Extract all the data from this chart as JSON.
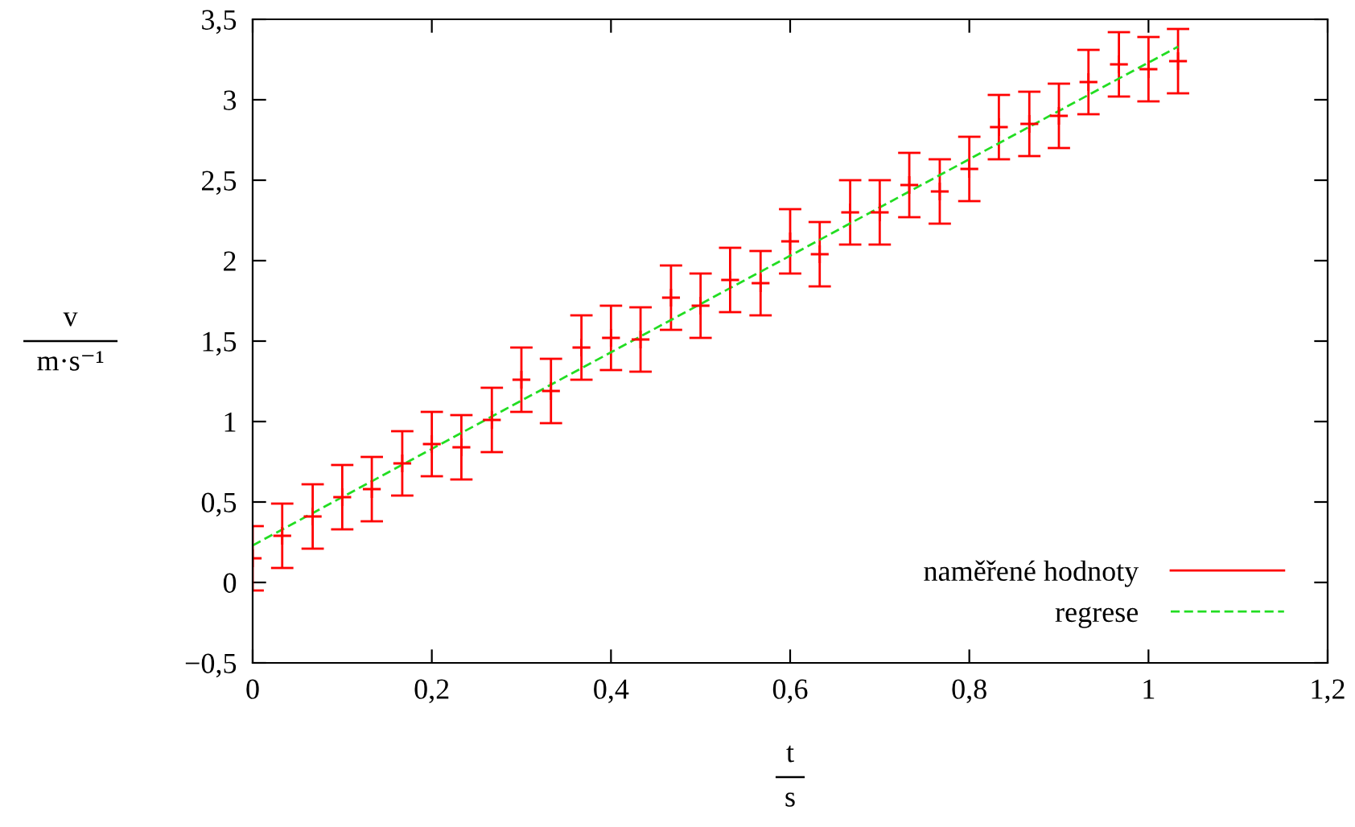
{
  "chart_data": {
    "type": "scatter",
    "xlabel": "t\ns",
    "ylabel": "v\nm·s⁻¹",
    "xlim": [
      0,
      1.2
    ],
    "ylim": [
      -0.5,
      3.5
    ],
    "xticks": [
      0,
      {
        "value": 0.2,
        "label": "0,2"
      },
      {
        "value": 0.4,
        "label": "0,4"
      },
      {
        "value": 0.6,
        "label": "0,6"
      },
      {
        "value": 0.8,
        "label": "0,8"
      },
      1,
      {
        "value": 1.2,
        "label": "1,2"
      }
    ],
    "yticks": [
      {
        "value": -0.5,
        "label": "−0,5"
      },
      0,
      {
        "value": 0.5,
        "label": "0,5"
      },
      1,
      {
        "value": 1.5,
        "label": "1,5"
      },
      2,
      {
        "value": 2.5,
        "label": "2,5"
      },
      3,
      {
        "value": 3.5,
        "label": "3,5"
      }
    ],
    "grid": false,
    "legend": "bottom right",
    "series": [
      {
        "name": "naměřené hodnoty",
        "marker": "cross",
        "color": "#ff0000",
        "x": [
          0,
          0.033,
          0.067,
          0.1,
          0.133,
          0.167,
          0.2,
          0.233,
          0.267,
          0.3,
          0.333,
          0.367,
          0.4,
          0.433,
          0.467,
          0.5,
          0.533,
          0.567,
          0.6,
          0.633,
          0.667,
          0.7,
          0.733,
          0.767,
          0.8,
          0.833,
          0.867,
          0.9,
          0.933,
          0.967,
          1.0,
          1.033
        ],
        "values": [
          0.15,
          0.29,
          0.41,
          0.53,
          0.58,
          0.74,
          0.86,
          0.84,
          1.01,
          1.26,
          1.19,
          1.46,
          1.52,
          1.51,
          1.77,
          1.72,
          1.88,
          1.86,
          2.12,
          2.04,
          2.3,
          2.3,
          2.47,
          2.43,
          2.57,
          2.83,
          2.85,
          2.9,
          3.11,
          3.22,
          3.19,
          3.24
        ],
        "errors": [
          0.2,
          0.2,
          0.2,
          0.2,
          0.2,
          0.2,
          0.2,
          0.2,
          0.2,
          0.2,
          0.2,
          0.2,
          0.2,
          0.2,
          0.2,
          0.2,
          0.2,
          0.2,
          0.2,
          0.2,
          0.2,
          0.2,
          0.2,
          0.2,
          0.2,
          0.2,
          0.2,
          0.2,
          0.2,
          0.2,
          0.2,
          0.2
        ]
      },
      {
        "name": "regrese",
        "type": "line",
        "color": "#22dd22",
        "line_style": "dashed",
        "x": [
          0,
          1.033
        ],
        "values": [
          0.23,
          3.33
        ]
      }
    ]
  }
}
